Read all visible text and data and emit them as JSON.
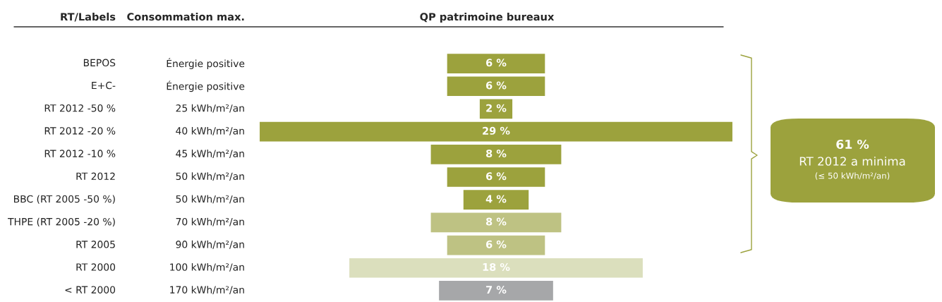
{
  "chart_data": {
    "type": "other",
    "title": "QP patrimoine bureaux",
    "categories": [
      "BEPOS",
      "E+C-",
      "RT 2012 -50 %",
      "RT 2012 -20 %",
      "RT 2012 -10 %",
      "RT 2012",
      "BBC (RT 2005 -50 %)",
      "THPE (RT 2005 -20 %)",
      "RT 2005",
      "RT 2000",
      "< RT 2000"
    ],
    "y2_categories": [
      "Énergie positive",
      "Énergie positive",
      "25 kWh/m²/an",
      "40 kWh/m²/an",
      "45 kWh/m²/an",
      "50 kWh/m²/an",
      "50 kWh/m²/an",
      "70 kWh/m²/an",
      "90 kWh/m²/an",
      "100 kWh/m²/an",
      "170 kWh/m²/an"
    ],
    "values": [
      6,
      6,
      2,
      29,
      8,
      6,
      4,
      8,
      6,
      18,
      7
    ],
    "value_labels": [
      "6 %",
      "6 %",
      "2 %",
      "29 %",
      "8 %",
      "6 %",
      "4 %",
      "8 %",
      "6 %",
      "18 %",
      "7 %"
    ],
    "colors": [
      "#9ca23d",
      "#9ca23d",
      "#9ca23d",
      "#9ca23d",
      "#9ca23d",
      "#9ca23d",
      "#9ca23d",
      "#bec283",
      "#bec283",
      "#dbdfbd",
      "#a6a7a9"
    ],
    "annotations": [
      "RT/Labels",
      "Consommation max.",
      "61 %",
      "RT 2012 a minima",
      "(≤ 50 kWh/m²/an)"
    ]
  }
}
